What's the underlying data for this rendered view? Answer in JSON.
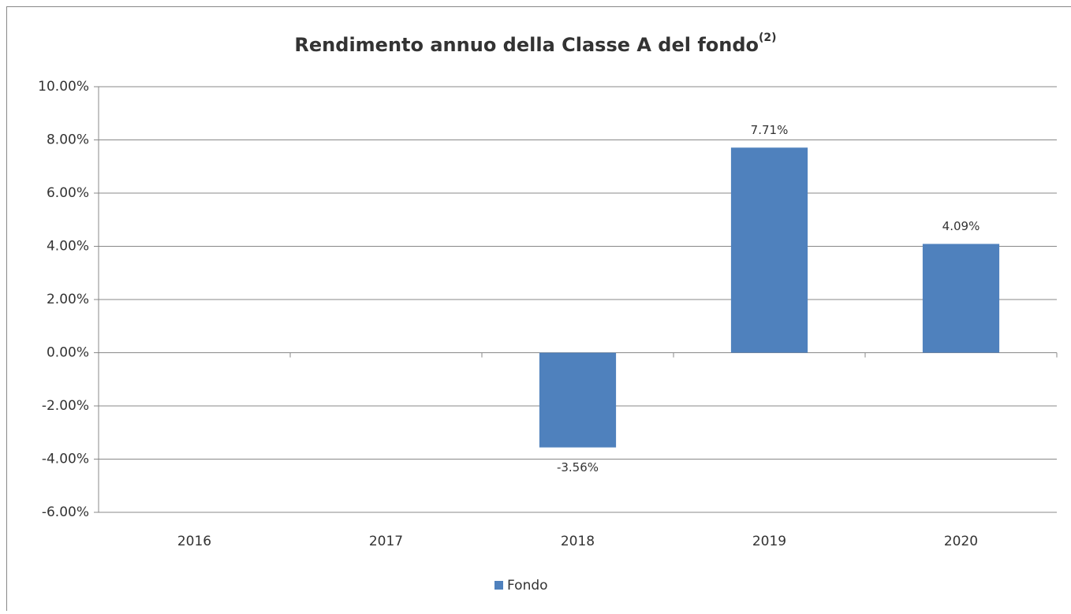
{
  "chart_data": {
    "type": "bar",
    "title": "Rendimento annuo della Classe A del fondo",
    "title_superscript": "(2)",
    "categories": [
      "2016",
      "2017",
      "2018",
      "2019",
      "2020"
    ],
    "series": [
      {
        "name": "Fondo",
        "color": "#4f81bd",
        "values": [
          null,
          null,
          -3.56,
          7.71,
          4.09
        ],
        "value_labels": [
          null,
          null,
          "-3.56%",
          "7.71%",
          "4.09%"
        ]
      }
    ],
    "ylim": [
      -6,
      10
    ],
    "yticks": [
      {
        "value": -6,
        "label": "-6.00%"
      },
      {
        "value": -4,
        "label": "-4.00%"
      },
      {
        "value": -2,
        "label": "-2.00%"
      },
      {
        "value": 0,
        "label": "0.00%"
      },
      {
        "value": 2,
        "label": "2.00%"
      },
      {
        "value": 4,
        "label": "4.00%"
      },
      {
        "value": 6,
        "label": "6.00%"
      },
      {
        "value": 8,
        "label": "8.00%"
      },
      {
        "value": 10,
        "label": "10.00%"
      }
    ],
    "grid": true,
    "legend": "bottom"
  }
}
